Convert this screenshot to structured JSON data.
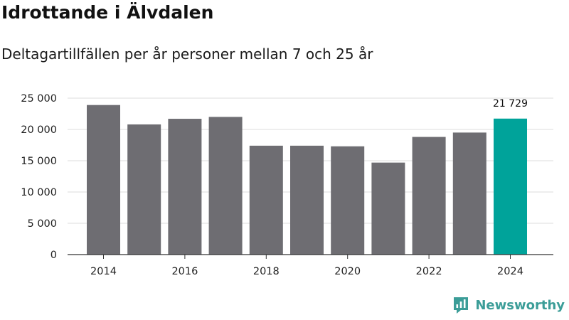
{
  "header": {
    "title": "Idrottande i Älvdalen",
    "subtitle": "Deltagartillfällen per år personer mellan 7 och 25 år"
  },
  "brand": {
    "name": "Newsworthy",
    "icon": "newsworthy-logo-icon"
  },
  "colors": {
    "bar_default": "#6e6d72",
    "bar_highlight": "#00a39a",
    "gridline": "#dddddd",
    "axis": "#333333"
  },
  "chart_data": {
    "type": "bar",
    "categories": [
      2014,
      2015,
      2016,
      2017,
      2018,
      2019,
      2020,
      2021,
      2022,
      2023,
      2024
    ],
    "values": [
      23900,
      20800,
      21700,
      22000,
      17400,
      17400,
      17300,
      14700,
      18800,
      19500,
      21729
    ],
    "highlight_index": 10,
    "data_labels": [
      {
        "index": 10,
        "text": "21 729"
      }
    ],
    "ylim": [
      0,
      25000
    ],
    "yticks": [
      0,
      5000,
      10000,
      15000,
      20000,
      25000
    ],
    "ytick_labels": [
      "0",
      "5 000",
      "10 000",
      "15 000",
      "20 000",
      "25 000"
    ],
    "xticks": [
      2014,
      2016,
      2018,
      2020,
      2022,
      2024
    ],
    "grid": true,
    "xlabel": "",
    "ylabel": ""
  }
}
